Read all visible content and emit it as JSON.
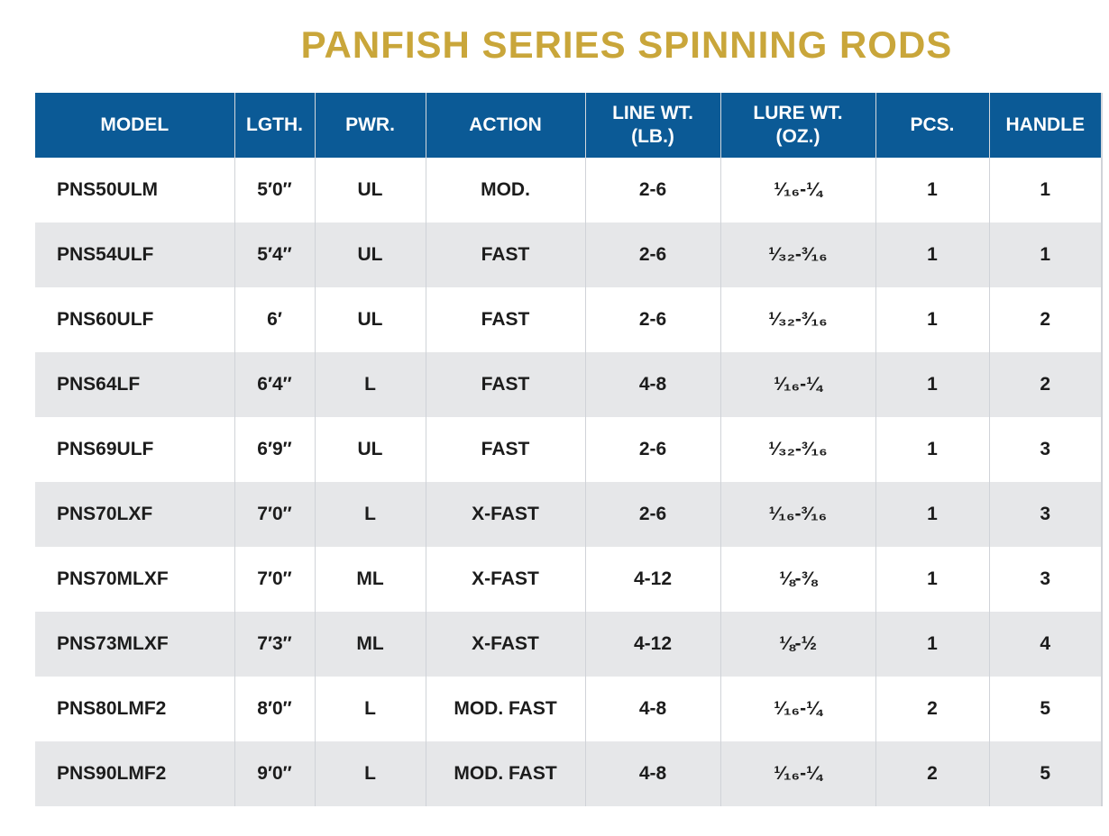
{
  "title": "PANFISH SERIES SPINNING RODS",
  "table": {
    "headers": {
      "model": "MODEL",
      "length": "LGTH.",
      "power": "PWR.",
      "action": "ACTION",
      "line_wt": "LINE WT.\n(LB.)",
      "lure_wt": "LURE WT.\n(OZ.)",
      "pieces": "PCS.",
      "handle": "HANDLE"
    },
    "rows": [
      {
        "model": "PNS50ULM",
        "length": "5′0″",
        "power": "UL",
        "action": "MOD.",
        "line_wt": "2-6",
        "lure_wt": "¹⁄₁₆-¼",
        "pieces": "1",
        "handle": "1"
      },
      {
        "model": "PNS54ULF",
        "length": "5′4″",
        "power": "UL",
        "action": "FAST",
        "line_wt": "2-6",
        "lure_wt": "¹⁄₃₂-³⁄₁₆",
        "pieces": "1",
        "handle": "1"
      },
      {
        "model": "PNS60ULF",
        "length": "6′",
        "power": "UL",
        "action": "FAST",
        "line_wt": "2-6",
        "lure_wt": "¹⁄₃₂-³⁄₁₆",
        "pieces": "1",
        "handle": "2"
      },
      {
        "model": "PNS64LF",
        "length": "6′4″",
        "power": "L",
        "action": "FAST",
        "line_wt": "4-8",
        "lure_wt": "¹⁄₁₆-¼",
        "pieces": "1",
        "handle": "2"
      },
      {
        "model": "PNS69ULF",
        "length": "6′9″",
        "power": "UL",
        "action": "FAST",
        "line_wt": "2-6",
        "lure_wt": "¹⁄₃₂-³⁄₁₆",
        "pieces": "1",
        "handle": "3"
      },
      {
        "model": "PNS70LXF",
        "length": "7′0″",
        "power": "L",
        "action": "X-FAST",
        "line_wt": "2-6",
        "lure_wt": "¹⁄₁₆-³⁄₁₆",
        "pieces": "1",
        "handle": "3"
      },
      {
        "model": "PNS70MLXF",
        "length": "7′0″",
        "power": "ML",
        "action": "X-FAST",
        "line_wt": "4-12",
        "lure_wt": "⅛-⅜",
        "pieces": "1",
        "handle": "3"
      },
      {
        "model": "PNS73MLXF",
        "length": "7′3″",
        "power": "ML",
        "action": "X-FAST",
        "line_wt": "4-12",
        "lure_wt": "⅛-½",
        "pieces": "1",
        "handle": "4"
      },
      {
        "model": "PNS80LMF2",
        "length": "8′0″",
        "power": "L",
        "action": "MOD. FAST",
        "line_wt": "4-8",
        "lure_wt": "¹⁄₁₆-¼",
        "pieces": "2",
        "handle": "5"
      },
      {
        "model": "PNS90LMF2",
        "length": "9′0″",
        "power": "L",
        "action": "MOD. FAST",
        "line_wt": "4-8",
        "lure_wt": "¹⁄₁₆-¼",
        "pieces": "2",
        "handle": "5"
      }
    ]
  },
  "colors": {
    "title": "#c9a63a",
    "header_bg": "#0b5a96",
    "row_alt_bg": "#e6e7e9"
  }
}
